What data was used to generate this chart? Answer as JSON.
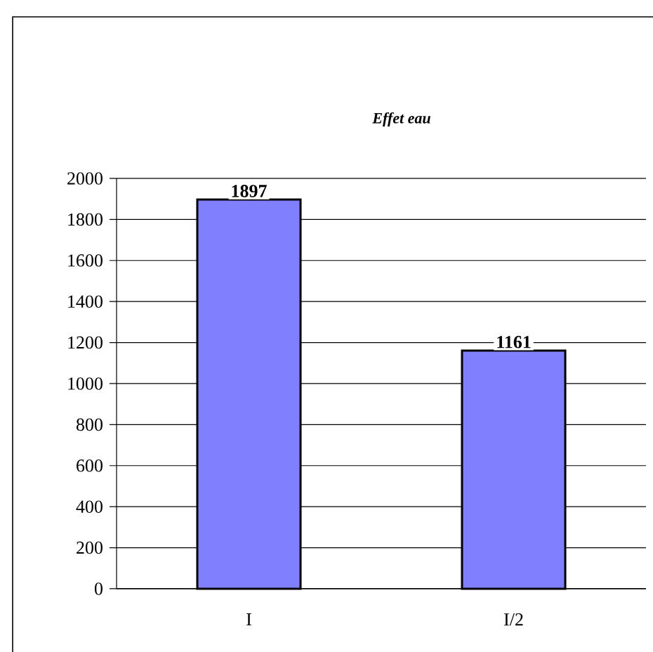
{
  "chart_data": {
    "type": "bar",
    "title": "Effet eau",
    "categories": [
      "I",
      "I/2"
    ],
    "values": [
      1897,
      1161
    ],
    "color": "#8080ff",
    "ylim": [
      0,
      2000
    ],
    "yticks": [
      0,
      200,
      400,
      600,
      800,
      1000,
      1200,
      1400,
      1600,
      1800,
      2000
    ],
    "grid": "y",
    "data_labels": true
  }
}
